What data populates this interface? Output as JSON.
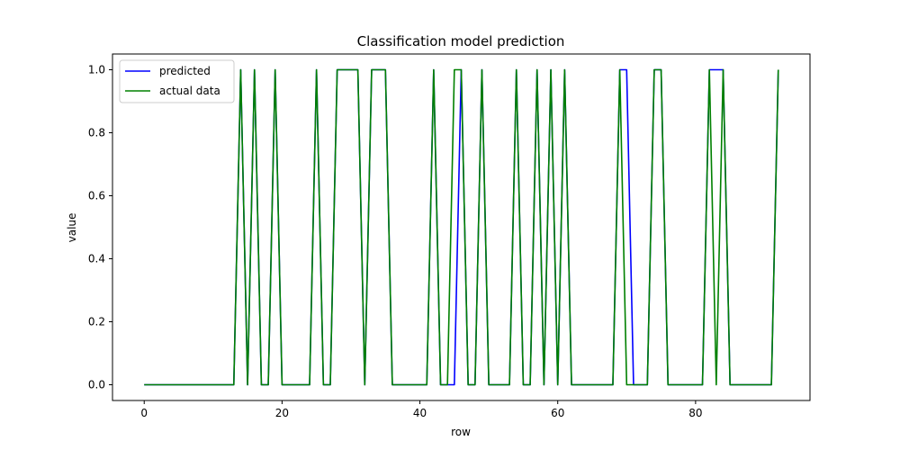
{
  "chart_data": {
    "type": "line",
    "title": "Classification model prediction",
    "xlabel": "row",
    "ylabel": "value",
    "xlim": [
      -4.6,
      96.6
    ],
    "ylim": [
      -0.05,
      1.05
    ],
    "xticks": [
      0,
      20,
      40,
      60,
      80
    ],
    "yticks": [
      0.0,
      0.2,
      0.4,
      0.6,
      0.8,
      1.0
    ],
    "xtick_labels": [
      "0",
      "20",
      "40",
      "60",
      "80"
    ],
    "ytick_labels": [
      "0.0",
      "0.2",
      "0.4",
      "0.6",
      "0.8",
      "1.0"
    ],
    "legend_position": "top-left",
    "grid": false,
    "series": [
      {
        "name": "predicted",
        "color": "#0000ff",
        "values": [
          0,
          0,
          0,
          0,
          0,
          0,
          0,
          0,
          0,
          0,
          0,
          0,
          0,
          0,
          1,
          0,
          1,
          0,
          0,
          1,
          0,
          0,
          0,
          0,
          0,
          1,
          0,
          0,
          1,
          1,
          1,
          1,
          0,
          1,
          1,
          1,
          0,
          0,
          0,
          0,
          0,
          0,
          1,
          0,
          0,
          0,
          1,
          0,
          0,
          1,
          0,
          0,
          0,
          0,
          1,
          0,
          0,
          1,
          0,
          1,
          0,
          1,
          0,
          0,
          0,
          0,
          0,
          0,
          0,
          1,
          1,
          0,
          0,
          0,
          1,
          1,
          0,
          0,
          0,
          0,
          0,
          0,
          1,
          1,
          1,
          0,
          0,
          0,
          0,
          0,
          0,
          0,
          1
        ]
      },
      {
        "name": "actual data",
        "color": "#008000",
        "values": [
          0,
          0,
          0,
          0,
          0,
          0,
          0,
          0,
          0,
          0,
          0,
          0,
          0,
          0,
          1,
          0,
          1,
          0,
          0,
          1,
          0,
          0,
          0,
          0,
          0,
          1,
          0,
          0,
          1,
          1,
          1,
          1,
          0,
          1,
          1,
          1,
          0,
          0,
          0,
          0,
          0,
          0,
          1,
          0,
          0,
          1,
          1,
          0,
          0,
          1,
          0,
          0,
          0,
          0,
          1,
          0,
          0,
          1,
          0,
          1,
          0,
          1,
          0,
          0,
          0,
          0,
          0,
          0,
          0,
          1,
          0,
          0,
          0,
          0,
          1,
          1,
          0,
          0,
          0,
          0,
          0,
          0,
          1,
          0,
          1,
          0,
          0,
          0,
          0,
          0,
          0,
          0,
          1
        ]
      }
    ]
  }
}
